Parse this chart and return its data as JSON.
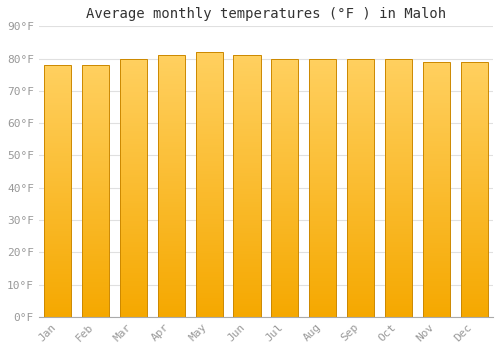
{
  "title": "Average monthly temperatures (°F ) in Maloh",
  "months": [
    "Jan",
    "Feb",
    "Mar",
    "Apr",
    "May",
    "Jun",
    "Jul",
    "Aug",
    "Sep",
    "Oct",
    "Nov",
    "Dec"
  ],
  "values": [
    78,
    78,
    80,
    81,
    82,
    81,
    80,
    80,
    80,
    80,
    79,
    79
  ],
  "bar_color_top": "#FFD060",
  "bar_color_bottom": "#F5A800",
  "bar_edge_color": "#CC8800",
  "ylim": [
    0,
    90
  ],
  "yticks": [
    0,
    10,
    20,
    30,
    40,
    50,
    60,
    70,
    80,
    90
  ],
  "background_color": "#FFFFFF",
  "grid_color": "#E0E0E0",
  "title_fontsize": 10,
  "tick_fontsize": 8,
  "tick_color": "#999999"
}
